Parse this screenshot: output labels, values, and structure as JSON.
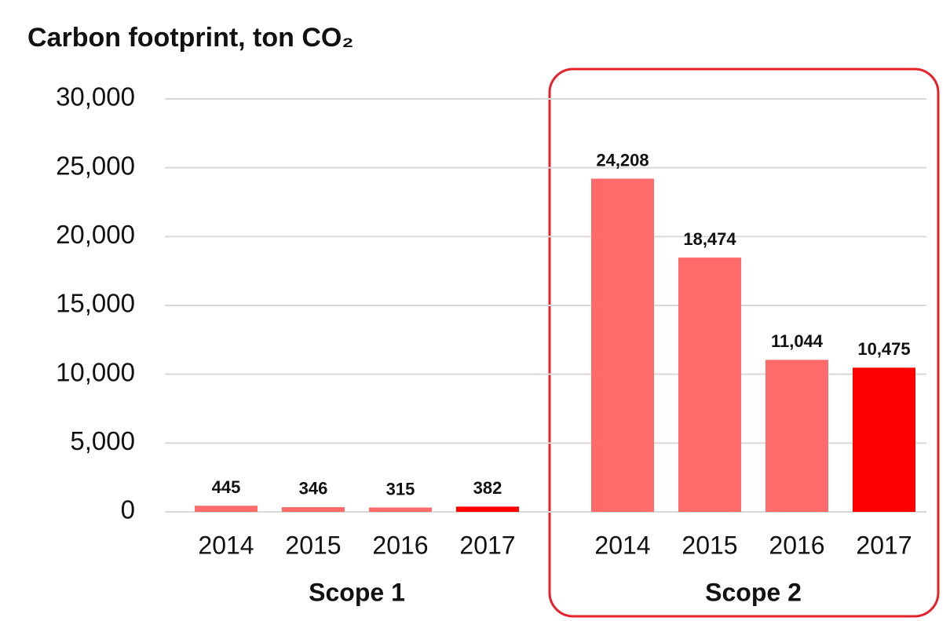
{
  "chart_data": {
    "type": "bar",
    "title": "Carbon footprint, ton CO₂",
    "groups": [
      "Scope 1",
      "Scope 2"
    ],
    "categories": [
      "2014",
      "2015",
      "2016",
      "2017",
      "2014",
      "2015",
      "2016",
      "2017"
    ],
    "values": [
      445,
      346,
      315,
      382,
      24208,
      18474,
      11044,
      10475
    ],
    "value_labels": [
      "445",
      "346",
      "315",
      "382",
      "24,208",
      "18,474",
      "11,044",
      "10,475"
    ],
    "colors": [
      "#ff6b6b",
      "#ff6b6b",
      "#ff6b6b",
      "#ff0000",
      "#ff6b6b",
      "#ff6b6b",
      "#ff6b6b",
      "#ff0000"
    ],
    "ylim": [
      0,
      30000
    ],
    "yticks": [
      0,
      {
        "value": 5000,
        "label": "5,000"
      },
      {
        "value": 10000,
        "label": "10,000"
      },
      {
        "value": 15000,
        "label": "15,000"
      },
      {
        "value": 20000,
        "label": "20,000"
      },
      {
        "value": 25000,
        "label": "25,000"
      },
      {
        "value": 30000,
        "label": "30,000"
      }
    ],
    "grid": true
  }
}
